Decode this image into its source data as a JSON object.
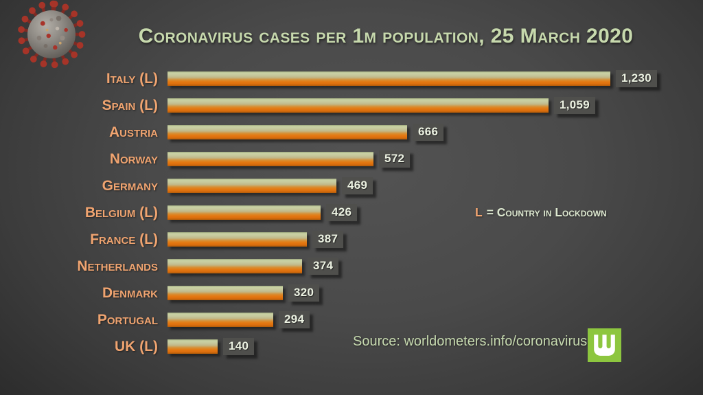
{
  "chart_data": {
    "type": "bar",
    "orientation": "horizontal",
    "title": "Coronavirus cases per 1m population, 25 March 2020",
    "categories": [
      "Italy (L)",
      "Spain (L)",
      "Austria",
      "Norway",
      "Germany",
      "Belgium (L)",
      "France (L)",
      "Netherlands",
      "Denmark",
      "Portugal",
      "UK (L)"
    ],
    "values": [
      1230,
      1059,
      666,
      572,
      469,
      426,
      387,
      374,
      320,
      294,
      140
    ],
    "value_labels": [
      "1,230",
      "1,059",
      "666",
      "572",
      "469",
      "426",
      "387",
      "374",
      "320",
      "294",
      "140"
    ],
    "xlim": [
      0,
      1230
    ],
    "grid": false,
    "legend_position": "right-middle",
    "value_labels_shown": true
  },
  "legend_note": {
    "key": "L",
    "text": "= Country in Lockdown"
  },
  "source": {
    "text": "Source: worldometers.info/coronavirus"
  },
  "logo": {
    "letter": "W",
    "background": "#8dc63f"
  },
  "colors": {
    "background_center": "#535353",
    "background_edge": "#272727",
    "title_text": "#c7d9ad",
    "category_text": "#f0a470",
    "value_text": "#ecf2e2",
    "value_badge_bg": "#4f4f4c",
    "legend_key": "#f0a470",
    "legend_text": "#dde8d0",
    "source_text": "#c6d9af",
    "logo_green": "#8dc63f",
    "bar_top_tan": "#c9d2a4",
    "bar_bottom_orange": "#e07412",
    "virus_body_gray": "#8f8b85",
    "virus_spike_red": "#a63428"
  }
}
